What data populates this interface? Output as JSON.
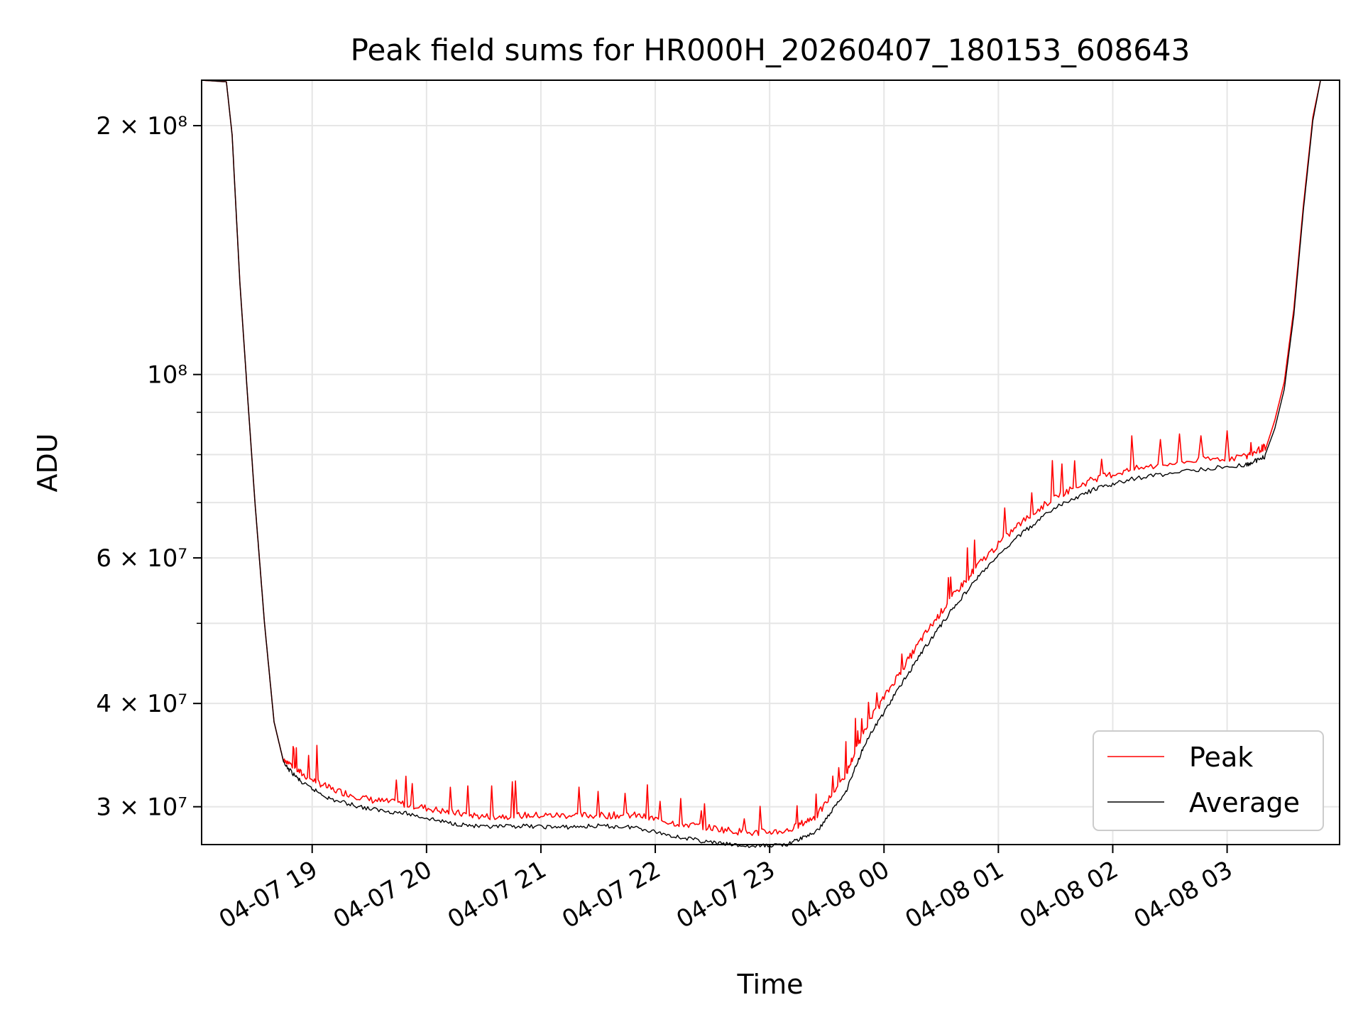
{
  "chart_data": {
    "type": "line",
    "title": "Peak field sums for HR000H_20260407_180153_608643",
    "xlabel": "Time",
    "ylabel": "ADU",
    "y_scale": "log",
    "grid": true,
    "legend_position": "lower-right",
    "xlim": [
      "2026-04-07T18:02",
      "2026-04-08T03:59"
    ],
    "ylim": [
      27000000,
      227000000
    ],
    "x_ticks": [
      {
        "value": "2026-04-07T19:00",
        "label": "04-07 19"
      },
      {
        "value": "2026-04-07T20:00",
        "label": "04-07 20"
      },
      {
        "value": "2026-04-07T21:00",
        "label": "04-07 21"
      },
      {
        "value": "2026-04-07T22:00",
        "label": "04-07 22"
      },
      {
        "value": "2026-04-07T23:00",
        "label": "04-07 23"
      },
      {
        "value": "2026-04-08T00:00",
        "label": "04-08 00"
      },
      {
        "value": "2026-04-08T01:00",
        "label": "04-08 01"
      },
      {
        "value": "2026-04-08T02:00",
        "label": "04-08 02"
      },
      {
        "value": "2026-04-08T03:00",
        "label": "04-08 03"
      }
    ],
    "y_ticks": [
      {
        "value": 30000000,
        "label": "3 × 10⁷"
      },
      {
        "value": 40000000,
        "label": "4 × 10⁷"
      },
      {
        "value": 60000000,
        "label": "6 × 10⁷"
      },
      {
        "value": 100000000,
        "label": "10⁸"
      },
      {
        "value": 200000000,
        "label": "2 × 10⁸"
      }
    ],
    "y_minor_ticks": [
      50000000,
      70000000,
      80000000,
      90000000
    ],
    "series": [
      {
        "name": "Peak",
        "color": "#ff0000",
        "points": [
          [
            "2026-04-07T18:02",
            227000000
          ],
          [
            "2026-04-07T18:15",
            226000000
          ],
          [
            "2026-04-07T18:18",
            195000000
          ],
          [
            "2026-04-07T18:22",
            130000000
          ],
          [
            "2026-04-07T18:26",
            95000000
          ],
          [
            "2026-04-07T18:30",
            70000000
          ],
          [
            "2026-04-07T18:35",
            50000000
          ],
          [
            "2026-04-07T18:40",
            38000000
          ],
          [
            "2026-04-07T18:45",
            34000000
          ],
          [
            "2026-04-07T18:55",
            32500000
          ],
          [
            "2026-04-07T19:10",
            31200000
          ],
          [
            "2026-04-07T19:30",
            30300000
          ],
          [
            "2026-04-07T19:50",
            29900000
          ],
          [
            "2026-04-07T20:10",
            29300000
          ],
          [
            "2026-04-07T20:30",
            28900000
          ],
          [
            "2026-04-07T20:50",
            29000000
          ],
          [
            "2026-04-07T21:10",
            29000000
          ],
          [
            "2026-04-07T21:30",
            29000000
          ],
          [
            "2026-04-07T21:50",
            29000000
          ],
          [
            "2026-04-07T22:10",
            28400000
          ],
          [
            "2026-04-07T22:30",
            28000000
          ],
          [
            "2026-04-07T22:50",
            27600000
          ],
          [
            "2026-04-07T23:10",
            27800000
          ],
          [
            "2026-04-07T23:25",
            29000000
          ],
          [
            "2026-04-07T23:40",
            32500000
          ],
          [
            "2026-04-07T23:50",
            37000000
          ],
          [
            "2026-04-08T00:05",
            42000000
          ],
          [
            "2026-04-08T00:20",
            47500000
          ],
          [
            "2026-04-08T00:35",
            53000000
          ],
          [
            "2026-04-08T00:50",
            58500000
          ],
          [
            "2026-04-08T01:10",
            65000000
          ],
          [
            "2026-04-08T01:30",
            70500000
          ],
          [
            "2026-04-08T01:50",
            74000000
          ],
          [
            "2026-04-08T02:10",
            76000000
          ],
          [
            "2026-04-08T02:40",
            77800000
          ],
          [
            "2026-04-08T03:10",
            78800000
          ],
          [
            "2026-04-08T03:20",
            81000000
          ],
          [
            "2026-04-08T03:25",
            88000000
          ],
          [
            "2026-04-08T03:30",
            98000000
          ],
          [
            "2026-04-08T03:35",
            120000000
          ],
          [
            "2026-04-08T03:40",
            160000000
          ],
          [
            "2026-04-08T03:45",
            205000000
          ],
          [
            "2026-04-08T03:49",
            227000000
          ]
        ]
      },
      {
        "name": "Average",
        "color": "#000000",
        "points": [
          [
            "2026-04-07T18:02",
            227000000
          ],
          [
            "2026-04-07T18:15",
            226000000
          ],
          [
            "2026-04-07T18:18",
            195000000
          ],
          [
            "2026-04-07T18:22",
            130000000
          ],
          [
            "2026-04-07T18:26",
            95000000
          ],
          [
            "2026-04-07T18:30",
            70000000
          ],
          [
            "2026-04-07T18:35",
            50000000
          ],
          [
            "2026-04-07T18:40",
            38000000
          ],
          [
            "2026-04-07T18:45",
            34000000
          ],
          [
            "2026-04-07T18:55",
            32200000
          ],
          [
            "2026-04-07T19:10",
            30800000
          ],
          [
            "2026-04-07T19:30",
            30000000
          ],
          [
            "2026-04-07T19:50",
            29600000
          ],
          [
            "2026-04-07T20:10",
            28900000
          ],
          [
            "2026-04-07T20:30",
            28500000
          ],
          [
            "2026-04-07T20:50",
            28600000
          ],
          [
            "2026-04-07T21:10",
            28500000
          ],
          [
            "2026-04-07T21:30",
            28600000
          ],
          [
            "2026-04-07T21:50",
            28500000
          ],
          [
            "2026-04-07T22:10",
            27800000
          ],
          [
            "2026-04-07T22:30",
            27300000
          ],
          [
            "2026-04-07T22:50",
            27000000
          ],
          [
            "2026-04-07T23:10",
            27200000
          ],
          [
            "2026-04-07T23:25",
            28200000
          ],
          [
            "2026-04-07T23:40",
            31500000
          ],
          [
            "2026-04-07T23:50",
            36000000
          ],
          [
            "2026-04-08T00:05",
            41000000
          ],
          [
            "2026-04-08T00:20",
            46500000
          ],
          [
            "2026-04-08T00:35",
            52000000
          ],
          [
            "2026-04-08T00:50",
            57500000
          ],
          [
            "2026-04-08T01:10",
            64000000
          ],
          [
            "2026-04-08T01:30",
            69500000
          ],
          [
            "2026-04-08T01:50",
            73000000
          ],
          [
            "2026-04-08T02:10",
            75200000
          ],
          [
            "2026-04-08T02:40",
            77000000
          ],
          [
            "2026-04-08T03:10",
            78200000
          ],
          [
            "2026-04-08T03:20",
            80000000
          ],
          [
            "2026-04-08T03:25",
            86000000
          ],
          [
            "2026-04-08T03:30",
            96000000
          ],
          [
            "2026-04-08T03:35",
            118000000
          ],
          [
            "2026-04-08T03:40",
            158000000
          ],
          [
            "2026-04-08T03:45",
            203000000
          ],
          [
            "2026-04-08T03:49",
            227000000
          ]
        ]
      }
    ]
  }
}
